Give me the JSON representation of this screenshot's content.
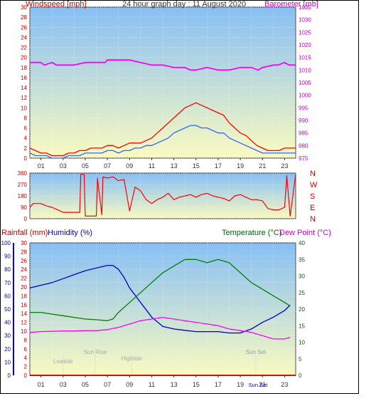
{
  "title": "24 hour graph day : 11 August 2020",
  "colors": {
    "windspeed": "#ff0000",
    "windgust": "#3366ff",
    "barometer": "#ff00ff",
    "direction": "#ff0000",
    "rainfall": "#ff0000",
    "humidity": "#0000cc",
    "temperature": "#008000",
    "dewpoint": "#ff00ff",
    "panel_top": "#87bff5",
    "panel_bottom": "#fafac0"
  },
  "hour_ticks": [
    "01",
    "03",
    "05",
    "07",
    "09",
    "11",
    "13",
    "15",
    "17",
    "19",
    "21",
    "23"
  ],
  "chart_data": [
    {
      "type": "line",
      "title": "24 hour graph day : 11 August 2020",
      "ylabel_left": "Windspeed [mph]",
      "ylabel_right": "Barometer [mb]",
      "y_left_ticks": [
        "0",
        "2",
        "4",
        "6",
        "8",
        "10",
        "12",
        "14",
        "16",
        "18",
        "20",
        "22",
        "24",
        "26",
        "28",
        "30"
      ],
      "y_right_ticks": [
        "975",
        "980",
        "985",
        "990",
        "995",
        "1000",
        "1005",
        "1010",
        "1015",
        "1020",
        "1025",
        "1030",
        "1035"
      ],
      "ylim_left": [
        0,
        30
      ],
      "ylim_right": [
        975,
        1035
      ],
      "xlim": [
        0,
        24
      ],
      "series": [
        {
          "name": "Windspeed",
          "axis": "left",
          "x": [
            0,
            0.5,
            1,
            1.5,
            2,
            2.5,
            3,
            3.5,
            4,
            4.5,
            5,
            5.5,
            6,
            6.5,
            7,
            7.5,
            8,
            8.5,
            9,
            9.5,
            10,
            10.5,
            11,
            11.5,
            12,
            12.5,
            13,
            13.5,
            14,
            14.5,
            15,
            15.5,
            16,
            16.5,
            17,
            17.5,
            18,
            18.5,
            19,
            19.5,
            20,
            20.5,
            21,
            21.5,
            22,
            22.5,
            23,
            23.5,
            24
          ],
          "values": [
            2,
            1.5,
            1,
            1,
            0.5,
            0.5,
            0.5,
            1,
            1,
            1.5,
            1.5,
            2,
            2,
            2,
            2.5,
            2.5,
            2,
            2.5,
            3,
            3,
            3,
            3.5,
            4,
            5,
            6,
            7,
            8,
            9,
            10,
            10.5,
            11,
            10.5,
            10,
            9.5,
            9,
            8.5,
            7,
            6,
            5,
            4.5,
            3.5,
            2.5,
            2,
            1.5,
            1.5,
            1.5,
            2,
            2,
            2
          ]
        },
        {
          "name": "Windgust",
          "axis": "left",
          "x": [
            0,
            0.5,
            1,
            1.5,
            2,
            2.5,
            3,
            3.5,
            4,
            4.5,
            5,
            5.5,
            6,
            6.5,
            7,
            7.5,
            8,
            8.5,
            9,
            9.5,
            10,
            10.5,
            11,
            11.5,
            12,
            12.5,
            13,
            13.5,
            14,
            14.5,
            15,
            15.5,
            16,
            16.5,
            17,
            17.5,
            18,
            18.5,
            19,
            19.5,
            20,
            20.5,
            21,
            21.5,
            22,
            22.5,
            23,
            23.5,
            24
          ],
          "values": [
            1,
            0.5,
            0.5,
            0.5,
            0,
            0,
            0,
            0.5,
            0.5,
            0.5,
            1,
            1,
            1,
            1,
            1.5,
            1.5,
            1,
            1.5,
            1.5,
            2,
            2,
            2.5,
            2.5,
            3,
            3.5,
            4,
            5,
            5.5,
            6,
            6.5,
            6.5,
            6,
            6,
            5.5,
            5,
            5,
            4,
            3.5,
            3,
            2.5,
            2,
            1.5,
            1,
            1,
            1,
            1,
            1,
            1,
            1
          ]
        },
        {
          "name": "Barometer",
          "axis": "right",
          "x": [
            0,
            1,
            1.3,
            2,
            2.4,
            3,
            4,
            5,
            6,
            6.8,
            7,
            8,
            9,
            10,
            11,
            12,
            13,
            14,
            14.5,
            15,
            16,
            17,
            18,
            19,
            20,
            20.6,
            21,
            22,
            22.4,
            23,
            23.4,
            24
          ],
          "values": [
            1013,
            1013,
            1012,
            1013,
            1012,
            1012,
            1012,
            1013,
            1013,
            1013,
            1014,
            1014,
            1014,
            1013,
            1012,
            1012,
            1011,
            1011,
            1010,
            1010,
            1011,
            1010,
            1010,
            1011,
            1011,
            1010,
            1011,
            1012,
            1012,
            1013,
            1012,
            1012
          ]
        }
      ]
    },
    {
      "type": "line",
      "ylabel_right": "",
      "y_left_ticks": [
        "0",
        "90",
        "180",
        "270",
        "360"
      ],
      "y_right_labels": [
        "N",
        "W",
        "S",
        "E",
        "N"
      ],
      "ylim": [
        0,
        360
      ],
      "xlim": [
        0,
        24
      ],
      "series": [
        {
          "name": "Wind direction",
          "x": [
            0,
            0.3,
            1,
            1.5,
            2,
            2.5,
            3,
            3.5,
            4,
            4.5,
            4.6,
            4.9,
            5,
            5.5,
            6,
            6.1,
            6.5,
            6.6,
            7,
            7.5,
            8,
            8.5,
            9,
            9.5,
            10,
            10.5,
            11,
            11.5,
            12,
            12.5,
            13,
            13.5,
            14,
            14.5,
            15,
            15.5,
            16,
            16.5,
            17,
            17.5,
            18,
            18.5,
            19,
            19.5,
            20,
            20.5,
            21,
            21.5,
            22,
            22.5,
            23,
            23.2,
            23.5,
            24
          ],
          "values": [
            90,
            120,
            120,
            100,
            90,
            70,
            50,
            50,
            50,
            50,
            350,
            350,
            20,
            20,
            20,
            320,
            30,
            330,
            320,
            330,
            300,
            310,
            60,
            250,
            220,
            150,
            120,
            150,
            170,
            200,
            150,
            170,
            180,
            190,
            170,
            190,
            200,
            180,
            170,
            160,
            140,
            180,
            190,
            170,
            150,
            150,
            140,
            80,
            70,
            70,
            90,
            340,
            20,
            350
          ]
        }
      ]
    },
    {
      "type": "line",
      "ylabel_left_1": "Rainfall (mm)",
      "ylabel_left_2": "Humidity (%)",
      "ylabel_right_1": "Temperature (°C)",
      "ylabel_right_2": "Dew Point (°C)",
      "y_humidity_ticks": [
        "0",
        "10",
        "20",
        "30",
        "40",
        "50",
        "60",
        "70",
        "80",
        "90",
        "100"
      ],
      "y_rain_ticks": [
        "0",
        "2",
        "4",
        "6",
        "8",
        "10",
        "12",
        "14",
        "16",
        "18",
        "20",
        "22",
        "24",
        "26",
        "28",
        "30"
      ],
      "y_temp_ticks": [
        "0",
        "5",
        "10",
        "15",
        "20",
        "25",
        "30",
        "35",
        "40"
      ],
      "ylim_humidity": [
        0,
        100
      ],
      "ylim_rain": [
        0,
        30
      ],
      "ylim_temp": [
        0,
        40
      ],
      "xlim": [
        0,
        24
      ],
      "annotations": [
        {
          "label": "Lowtide",
          "x": 3.0
        },
        {
          "label": "Sun Rise",
          "x": 5.9
        },
        {
          "label": "Hightide",
          "x": 9.2
        },
        {
          "label": "Sun Set",
          "x": 20.4
        },
        {
          "label": "Sun Set",
          "x": 20.4
        }
      ],
      "series": [
        {
          "name": "Rainfall",
          "axis": "rain",
          "x": [
            0,
            24
          ],
          "values": [
            0,
            0
          ]
        },
        {
          "name": "Humidity",
          "axis": "humidity",
          "x": [
            0,
            1,
            2,
            3,
            4,
            5,
            6,
            7,
            7.5,
            8,
            8.5,
            9,
            10,
            11,
            12,
            13,
            14,
            15,
            16,
            17,
            18,
            19,
            20,
            21,
            22,
            23,
            23.5
          ],
          "values": [
            66,
            68,
            70,
            73,
            76,
            79,
            81,
            83,
            83,
            80,
            74,
            66,
            55,
            44,
            37,
            35,
            34,
            33,
            33,
            33,
            32,
            32,
            35,
            40,
            44,
            49,
            53
          ]
        },
        {
          "name": "Temperature",
          "axis": "temp",
          "x": [
            0,
            1,
            2,
            3,
            4,
            5,
            6,
            7,
            7.5,
            8,
            9,
            10,
            11,
            12,
            13,
            14,
            15,
            16,
            17,
            18,
            19,
            20,
            21,
            22,
            23,
            23.5
          ],
          "values": [
            19,
            19,
            18.5,
            18,
            17.5,
            17,
            16.8,
            16.5,
            17,
            19,
            22,
            25,
            28,
            31,
            33,
            35,
            35,
            34,
            35,
            34,
            31,
            28,
            26,
            24,
            22,
            21
          ]
        },
        {
          "name": "Dew Point",
          "axis": "temp",
          "x": [
            0,
            1,
            2,
            3,
            4,
            5,
            6,
            7,
            8,
            9,
            10,
            11,
            12,
            13,
            14,
            15,
            16,
            17,
            18,
            19,
            20,
            21,
            22,
            23,
            23.5
          ],
          "values": [
            13,
            13.2,
            13.3,
            13.4,
            13.4,
            13.5,
            13.5,
            13.8,
            14.5,
            15.5,
            16.5,
            17,
            17.5,
            17,
            16.5,
            16,
            15.5,
            15,
            14,
            13.5,
            13,
            12,
            11,
            11,
            11.5
          ]
        }
      ]
    }
  ]
}
